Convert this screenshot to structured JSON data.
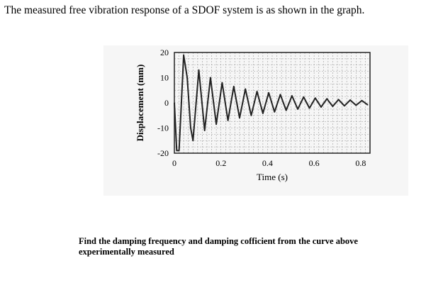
{
  "question": {
    "text": "The measured free vibration response of a SDOF system is as shown in the graph."
  },
  "task": {
    "text": "Find the damping frequency and damping cofficient from the curve above experimentally measured"
  },
  "chart_data": {
    "type": "line",
    "title": "",
    "xlabel": "Time (s)",
    "ylabel": "Displacement (mm)",
    "xlim": [
      0,
      0.84
    ],
    "ylim": [
      -20,
      20
    ],
    "xticks": [
      0,
      0.2,
      0.4,
      0.6,
      0.8
    ],
    "xtick_labels": [
      "0",
      "0.2",
      "0.4",
      "0.6",
      "0.8"
    ],
    "yticks": [
      20,
      10,
      0,
      -10,
      -20
    ],
    "ytick_labels": [
      "20",
      "10",
      "0",
      "-10",
      "-20"
    ],
    "grid": true,
    "legend": "none",
    "series": [
      {
        "x": [
          0,
          0.01,
          0.02,
          0.03,
          0.04,
          0.055,
          0.07,
          0.08,
          0.105,
          0.13,
          0.155,
          0.18,
          0.205,
          0.23,
          0.255,
          0.28,
          0.305,
          0.33,
          0.355,
          0.38,
          0.405,
          0.43,
          0.455,
          0.48,
          0.505,
          0.53,
          0.555,
          0.58,
          0.605,
          0.63,
          0.655,
          0.68,
          0.705,
          0.73,
          0.755,
          0.78,
          0.805,
          0.83
        ],
        "y": [
          0,
          -19,
          -19,
          0,
          19,
          10,
          -10,
          -15,
          13,
          -11,
          10,
          -8.5,
          8,
          -7,
          6.5,
          -6,
          5.5,
          -5,
          4.5,
          -4.2,
          4,
          -3.6,
          3.3,
          -3,
          2.8,
          -2.5,
          2.3,
          -2.1,
          1.9,
          -1.7,
          1.6,
          -1.4,
          1.3,
          -1.2,
          1.1,
          -1,
          0.9,
          -0.8
        ],
        "color": "#222222"
      }
    ]
  }
}
